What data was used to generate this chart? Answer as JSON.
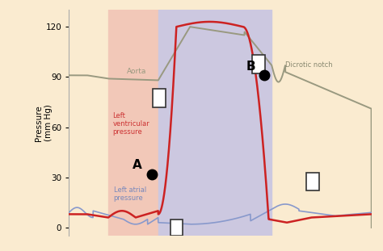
{
  "ylabel": "Pressure\n(mm Hg)",
  "ylim": [
    -5,
    130
  ],
  "yticks": [
    0,
    30,
    60,
    90,
    120
  ],
  "bg_color": "#faebd0",
  "region1_color": "#f2c8b8",
  "region2_color": "#ccc8e0",
  "aorta_color": "#999980",
  "lv_color": "#cc2222",
  "la_color": "#8899cc",
  "text_aorta": "Aorta",
  "text_lv": "Left\nventricular\npressure",
  "text_la": "Left atrial\npressure",
  "text_dicrotic": "Dicrotic notch",
  "label_A": "A",
  "label_B": "B"
}
